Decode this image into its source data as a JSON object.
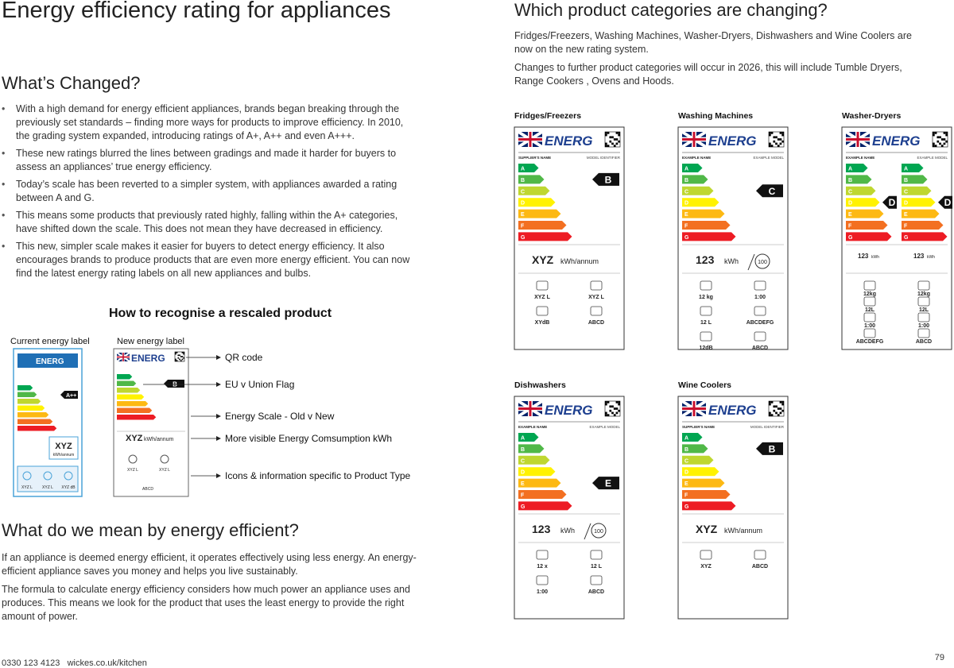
{
  "header": {
    "title": "Energy efficiency rating for appliances"
  },
  "whats_changed": {
    "heading": "What’s Changed?",
    "bullets": [
      "With a high demand for energy efficient appliances, brands began breaking through the previously set standards – finding more ways for products to improve efficiency. In 2010, the grading system expanded, introducing ratings of A+, A++ and even A+++.",
      "These new ratings blurred the lines between gradings and made it harder for buyers to assess an appliances’ true energy efficiency.",
      "Today’s scale has been reverted to a simpler system, with appliances awarded a rating between A and G.",
      "This means some products that previously rated highly, falling within the A+ categories, have shifted down the scale. This does not mean they have decreased in efficiency.",
      "This new, simpler scale makes it easier for buyers to detect energy efficiency. It also encourages brands to produce products that are even more energy efficient. You can now find the latest energy rating labels on all new appliances and bulbs."
    ]
  },
  "infographic": {
    "title": "How to recognise a rescaled product",
    "current_label": "Current energy label",
    "new_label": "New energy label",
    "old_sample": {
      "energy": "ENERG",
      "rating": "A++",
      "consumption": "XYZ",
      "unit": "kWh/annum",
      "icons": [
        "XYZ L",
        "XYZ L",
        "XYZ dB"
      ]
    },
    "new_sample": {
      "energy": "ENERG",
      "rating": "B",
      "consumption": "XYZ",
      "unit": "kWh/annum",
      "icons": [
        "XYZ L",
        "XYZ L"
      ],
      "class": "ABCD"
    },
    "callouts": [
      "QR code",
      "EU v Union Flag",
      "Energy Scale - Old v New",
      "More visible Energy Comsumption kWh",
      "Icons & information specific to Product Type"
    ]
  },
  "efficient": {
    "heading": "What do we mean by energy efficient?",
    "paragraphs": [
      "If an appliance is deemed energy efficient, it operates effectively using less energy. An energy-efficient appliance saves you money and helps you live sustainably.",
      "The formula to calculate energy efficiency considers how much power an appliance uses and produces. This means we look for the product that uses the least energy to provide the right amount of power."
    ]
  },
  "categories": {
    "heading": "Which product categories are changing?",
    "paragraphs": [
      "Fridges/Freezers, Washing Machines, Washer-Dryers, Dishwashers and Wine Coolers are now on the new rating system.",
      "Changes to further product categories will occur in 2026, this will include Tumble Dryers, Range Cookers , Ovens and Hoods."
    ],
    "energy_word": "ENERG",
    "scale": [
      "A",
      "B",
      "C",
      "D",
      "E",
      "F",
      "G"
    ],
    "cards": [
      {
        "name": "Fridges/Freezers",
        "supplier": "SUPPLIER'S NAME",
        "model": "MODEL IDENTIFIER",
        "ratings": [
          "B"
        ],
        "consumption": "XYZ",
        "unit": "kWh/annum",
        "icons": [
          "XYZ L",
          "XYZ L",
          "XYdB",
          "ABCD"
        ]
      },
      {
        "name": "Washing Machines",
        "supplier": "EXAMPLE NAME",
        "model": "EXAMPLE MODEL",
        "ratings": [
          "C"
        ],
        "consumption": "123",
        "unit": "kWh",
        "badge": "100",
        "icons": [
          "12 kg",
          "1:00",
          "12 L",
          "ABCDEFG",
          "12dB",
          "ABCD"
        ]
      },
      {
        "name": "Washer-Dryers",
        "supplier": "EXAMPLE NAME",
        "model": "EXAMPLE MODEL",
        "ratings": [
          "D",
          "D"
        ],
        "consumption": "123",
        "unit": "kWh",
        "icons": [
          "12kg",
          "12kg",
          "12L",
          "12L",
          "1:00",
          "1:00",
          "ABCDEFG",
          "ABCD"
        ]
      },
      {
        "name": "Dishwashers",
        "supplier": "EXAMPLE NAME",
        "model": "EXAMPLE MODEL",
        "ratings": [
          "E"
        ],
        "consumption": "123",
        "unit": "kWh",
        "badge": "100",
        "icons": [
          "12 x",
          "12 L",
          "1:00",
          "ABCD"
        ]
      },
      {
        "name": "Wine Coolers",
        "supplier": "SUPPLIER'S NAME",
        "model": "MODEL IDENTIFIER",
        "ratings": [
          "B"
        ],
        "consumption": "XYZ",
        "unit": "kWh/annum",
        "icons": [
          "XYZ",
          "ABCD"
        ]
      }
    ]
  },
  "footer": {
    "contact": "0330 123 4123   wickes.co.uk/kitchen",
    "page": "79"
  }
}
